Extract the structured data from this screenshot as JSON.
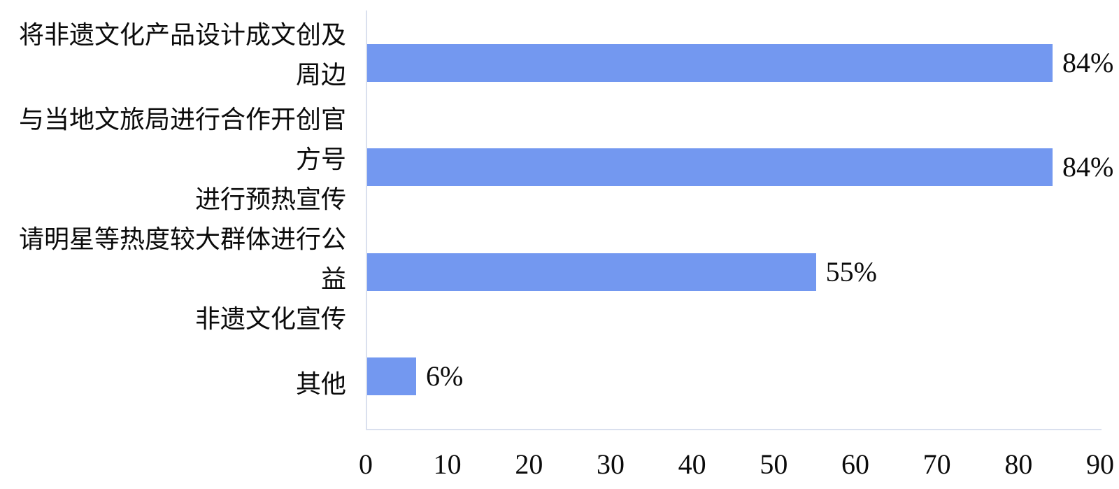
{
  "chart_data": {
    "type": "bar",
    "orientation": "horizontal",
    "title": "",
    "xlabel": "",
    "ylabel": "",
    "xlim": [
      0,
      90
    ],
    "xticks": [
      0,
      10,
      20,
      30,
      40,
      50,
      60,
      70,
      80,
      90
    ],
    "grid": false,
    "legend": null,
    "bar_color": "#7398F0",
    "axis_line_color": "#DAE0EE",
    "text_color": "#0b0b0b",
    "categories": [
      "将非遗文化产品设计成文创及周边",
      "与当地文旅局进行合作开创官方号进行预热宣传",
      "请明星等热度较大群体进行公益非遗文化宣传",
      "其他"
    ],
    "category_display_lines": [
      [
        "将非遗文化产品设计成文创及周边"
      ],
      [
        "与当地文旅局进行合作开创官方号",
        "进行预热宣传"
      ],
      [
        "请明星等热度较大群体进行公益",
        "非遗文化宣传"
      ],
      [
        "其他"
      ]
    ],
    "values": [
      84,
      84,
      55,
      6
    ],
    "value_labels": [
      "84%",
      "84%",
      "55%",
      "6%"
    ]
  }
}
